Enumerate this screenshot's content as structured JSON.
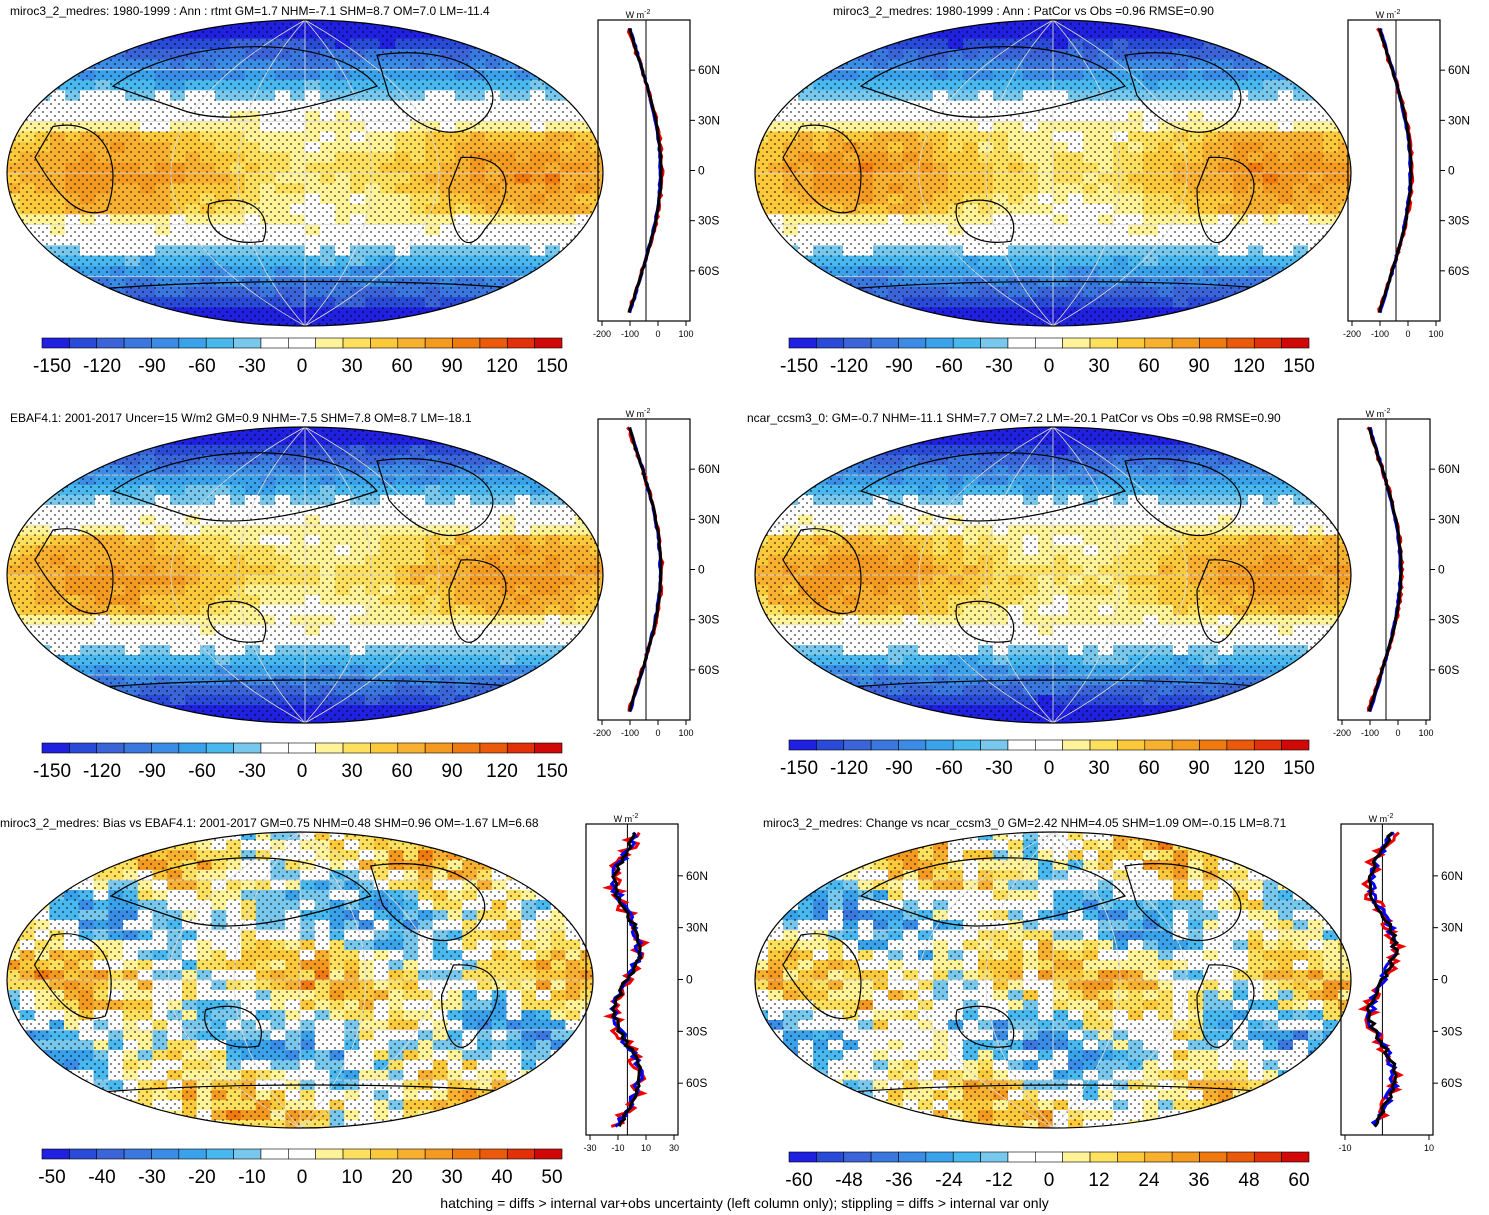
{
  "palette": [
    "#2020e0",
    "#2a4ad8",
    "#3a64d8",
    "#3a78e0",
    "#3a8ce6",
    "#3aa2ea",
    "#48b8ee",
    "#78c8ee",
    "#ffffff",
    "#ffffff",
    "#fff39a",
    "#fde15e",
    "#fbc93a",
    "#f8b030",
    "#f59a20",
    "#f07a10",
    "#ea5a0a",
    "#e23008",
    "#d00808"
  ],
  "panels": [
    {
      "id": "p1",
      "title": "miroc3_2_medres: 1980-1999 : Ann : rtmt GM=1.7 NHM=-7.1 SHM=8.7 OM=7.0 LM=-11.4",
      "colorbar_labels": [
        "-150",
        "-120",
        "-90",
        "-60",
        "-30",
        "0",
        "30",
        "60",
        "90",
        "120",
        "150"
      ],
      "profile": {
        "units": "W m",
        "units_sup": "-2",
        "lat_labels": [
          "60N",
          "30N",
          "0",
          "30S",
          "60S"
        ],
        "x_labels": [
          "-200",
          "-100",
          "0",
          "100"
        ]
      }
    },
    {
      "id": "p2",
      "title": "miroc3_2_medres: 1980-1999 : Ann : PatCor vs Obs =0.96 RMSE=0.90",
      "colorbar_labels": [
        "-150",
        "-120",
        "-90",
        "-60",
        "-30",
        "0",
        "30",
        "60",
        "90",
        "120",
        "150"
      ],
      "profile": {
        "units": "W m",
        "units_sup": "-2",
        "lat_labels": [
          "60N",
          "30N",
          "0",
          "30S",
          "60S"
        ],
        "x_labels": [
          "-200",
          "-100",
          "0",
          "100"
        ]
      }
    },
    {
      "id": "p3",
      "title": "EBAF4.1: 2001-2017 Uncer=15 W/m2 GM=0.9 NHM=-7.5 SHM=7.8 OM=8.7 LM=-18.1",
      "colorbar_labels": [
        "-150",
        "-120",
        "-90",
        "-60",
        "-30",
        "0",
        "30",
        "60",
        "90",
        "120",
        "150"
      ],
      "profile": {
        "units": "W m",
        "units_sup": "-2",
        "lat_labels": [
          "60N",
          "30N",
          "0",
          "30S",
          "60S"
        ],
        "x_labels": [
          "-200",
          "-100",
          "0",
          "100"
        ]
      }
    },
    {
      "id": "p4",
      "title": "ncar_ccsm3_0: GM=-0.7 NHM=-11.1 SHM=7.7 OM=7.2 LM=-20.1 PatCor vs Obs =0.98 RMSE=0.90",
      "colorbar_labels": [
        "-150",
        "-120",
        "-90",
        "-60",
        "-30",
        "0",
        "30",
        "60",
        "90",
        "120",
        "150"
      ],
      "profile": {
        "units": "W m",
        "units_sup": "-2",
        "lat_labels": [
          "60N",
          "30N",
          "0",
          "30S",
          "60S"
        ],
        "x_labels": [
          "-200",
          "-100",
          "0",
          "100"
        ]
      }
    },
    {
      "id": "p5",
      "title": "miroc3_2_medres: Bias vs EBAF4.1: 2001-2017 GM=0.75 NHM=0.48 SHM=0.96 OM=-1.67 LM=6.68",
      "colorbar_labels": [
        "-50",
        "-40",
        "-30",
        "-20",
        "-10",
        "0",
        "10",
        "20",
        "30",
        "40",
        "50"
      ],
      "profile": {
        "units": "W m",
        "units_sup": "-2",
        "lat_labels": [
          "60N",
          "30N",
          "0",
          "30S",
          "60S"
        ],
        "x_labels": [
          "-30",
          "-10",
          "10",
          "30"
        ]
      }
    },
    {
      "id": "p6",
      "title": "miroc3_2_medres: Change vs ncar_ccsm3_0 GM=2.42 NHM=4.05 SHM=1.09 OM=-0.15 LM=8.71",
      "colorbar_labels": [
        "-60",
        "-48",
        "-36",
        "-24",
        "-12",
        "0",
        "12",
        "24",
        "36",
        "48",
        "60"
      ],
      "profile": {
        "units": "W m",
        "units_sup": "-2",
        "lat_labels": [
          "60N",
          "30N",
          "0",
          "30S",
          "60S"
        ],
        "x_labels": [
          "-10",
          "10"
        ]
      }
    }
  ],
  "footer": "hatching = diffs > internal var+obs uncertainty (left column only); stippling = diffs > internal var only"
}
